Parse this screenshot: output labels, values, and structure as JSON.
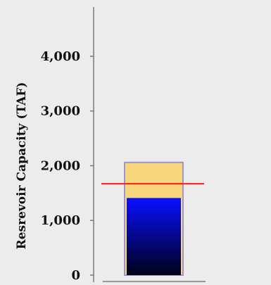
{
  "chart_data": {
    "type": "bar",
    "ylabel": "Resrevoir Capacity (TAF)",
    "ylim": [
      0,
      4900
    ],
    "yticks": [
      {
        "value": 0,
        "label": "0"
      },
      {
        "value": 1000,
        "label": "1,000"
      },
      {
        "value": 2000,
        "label": "2,000"
      },
      {
        "value": 3000,
        "label": "3,000"
      },
      {
        "value": 4000,
        "label": "4,000"
      }
    ],
    "capacity_value": 2060,
    "storage_value": 1410,
    "reference_line_value": 1670,
    "colors": {
      "background": "#ececec",
      "axis": "#7a7a7a",
      "tick_label": "#111111",
      "capacity_fill": "#f7d67c",
      "capacity_border": "#9d95cc",
      "storage_top": "#0a10ff",
      "storage_bottom": "#000018",
      "reference_line": "#ff1a1a"
    }
  }
}
